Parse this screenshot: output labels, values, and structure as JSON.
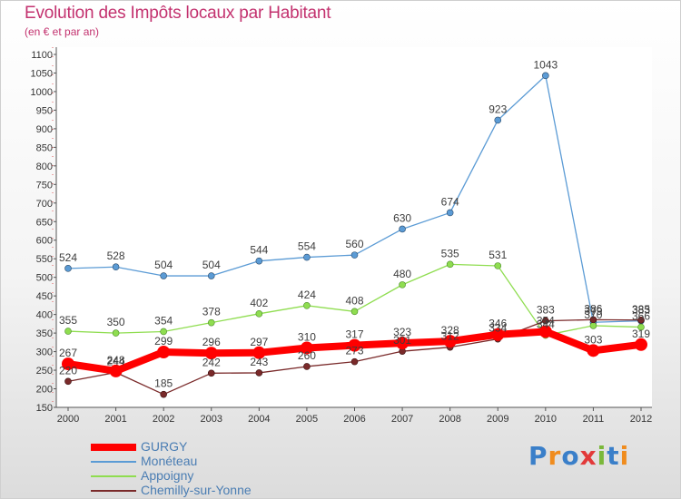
{
  "title": "Evolution des Impôts locaux par Habitant",
  "subtitle": "(en € et par an)",
  "logo": {
    "letters": [
      "P",
      "r",
      "o",
      "x",
      "i",
      "t",
      "i"
    ],
    "colors": [
      "#3a7fc9",
      "#f08c1e",
      "#3a7fc9",
      "#e23a3a",
      "#7ab83a",
      "#3a7fc9",
      "#f08c1e"
    ]
  },
  "chart_data": {
    "type": "line",
    "x": [
      2000,
      2001,
      2002,
      2003,
      2004,
      2005,
      2006,
      2007,
      2008,
      2009,
      2010,
      2011,
      2012
    ],
    "ylim": [
      150,
      1100
    ],
    "yticks": [
      150,
      200,
      250,
      300,
      350,
      400,
      450,
      500,
      550,
      600,
      650,
      700,
      750,
      800,
      850,
      900,
      950,
      1000,
      1050,
      1100
    ],
    "grid": false,
    "legend_position": "bottom-left",
    "series": [
      {
        "name": "GURGY",
        "color": "#ff0000",
        "width": 8,
        "marker_r": 7,
        "values": [
          267,
          248,
          299,
          296,
          297,
          310,
          317,
          323,
          328,
          346,
          354,
          303,
          319
        ],
        "labels": [
          "267",
          "248",
          "299",
          "296",
          "297",
          "310",
          "317",
          "323",
          "328",
          "346",
          "354",
          "303",
          "319"
        ]
      },
      {
        "name": "Monéteau",
        "color": "#5b9bd5",
        "width": 1.3,
        "marker_r": 3.5,
        "values": [
          524,
          528,
          504,
          504,
          544,
          554,
          560,
          630,
          674,
          923,
          1043,
          379,
          383
        ],
        "labels": [
          "524",
          "528",
          "504",
          "504",
          "544",
          "554",
          "560",
          "630",
          "674",
          "923",
          "1043",
          "379",
          "383"
        ]
      },
      {
        "name": "Appoigny",
        "color": "#8fdd50",
        "width": 1.3,
        "marker_r": 3.5,
        "values": [
          355,
          350,
          354,
          378,
          402,
          424,
          408,
          480,
          535,
          531,
          344,
          370,
          366
        ],
        "labels": [
          "355",
          "350",
          "354",
          "378",
          "402",
          "424",
          "408",
          "480",
          "535",
          "531",
          "344",
          "370",
          "366"
        ]
      },
      {
        "name": "Chemilly-sur-Yonne",
        "color": "#7a2a2a",
        "width": 1.3,
        "marker_r": 3.5,
        "values": [
          220,
          244,
          185,
          242,
          243,
          260,
          273,
          301,
          312,
          334,
          383,
          386,
          385
        ],
        "labels": [
          "220",
          "244",
          "185",
          "242",
          "243",
          "260",
          "273",
          "301",
          "312",
          "334",
          "383",
          "386",
          "385"
        ]
      }
    ]
  }
}
